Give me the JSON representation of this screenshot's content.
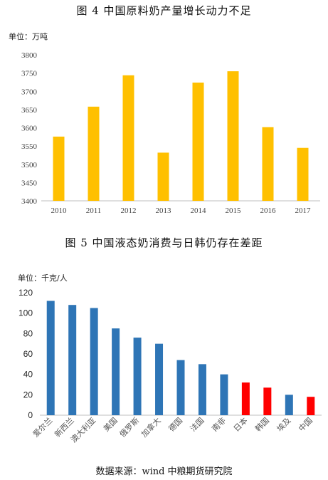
{
  "figure1": {
    "title": "图 4  中国原料奶产量增长动力不足",
    "unit": "单位：万吨"
  },
  "figure2": {
    "title": "图 5  中国液态奶消费与日韩仍存在差距",
    "unit": "单位：千克/人"
  },
  "source": "数据来源：wind  中粮期货研究院",
  "colors": {
    "gold": "#FFC000",
    "blue": "#2E75B6",
    "red": "#FF0000"
  },
  "chart_data": [
    {
      "type": "bar",
      "title": "图 4  中国原料奶产量增长动力不足",
      "ylabel": "单位：万吨",
      "categories": [
        "2010",
        "2011",
        "2012",
        "2013",
        "2014",
        "2015",
        "2016",
        "2017"
      ],
      "values": [
        3576,
        3658,
        3744,
        3532,
        3724,
        3755,
        3602,
        3545
      ],
      "ylim": [
        3400,
        3800
      ],
      "yticks": [
        "3400",
        "3450",
        "3500",
        "3550",
        "3600",
        "3650",
        "3700",
        "3750",
        "3800"
      ],
      "bar_color": "#FFC000",
      "grid": false
    },
    {
      "type": "bar",
      "title": "图 5  中国液态奶消费与日韩仍存在差距",
      "ylabel": "单位：千克/人",
      "categories": [
        "爱尔兰",
        "新西兰",
        "澳大利亚",
        "美国",
        "俄罗斯",
        "加拿大",
        "德国",
        "法国",
        "南非",
        "日本",
        "韩国",
        "埃及",
        "中国"
      ],
      "values": [
        112,
        108,
        105,
        85,
        76,
        70,
        54,
        50,
        40,
        32,
        27,
        20,
        18
      ],
      "bar_colors": [
        "#2E75B6",
        "#2E75B6",
        "#2E75B6",
        "#2E75B6",
        "#2E75B6",
        "#2E75B6",
        "#2E75B6",
        "#2E75B6",
        "#2E75B6",
        "#FF0000",
        "#FF0000",
        "#2E75B6",
        "#FF0000"
      ],
      "ylim": [
        0,
        120
      ],
      "yticks": [
        "0",
        "20",
        "40",
        "60",
        "80",
        "100",
        "120"
      ],
      "grid": false
    }
  ]
}
